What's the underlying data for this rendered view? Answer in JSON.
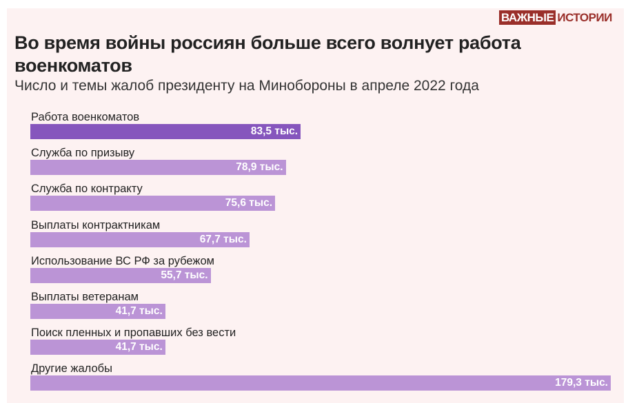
{
  "logo": {
    "part1": "ВАЖНЫЕ",
    "part2": "ИСТОРИИ"
  },
  "chart_data": {
    "type": "bar",
    "orientation": "horizontal",
    "title": "Во время войны россиян больше всего волнует работа военкоматов",
    "subtitle": "Число и темы жалоб президенту на Минобороны в апреле 2022 года",
    "categories": [
      "Работа военкоматов",
      "Служба по призыву",
      "Служба по контракту",
      "Выплаты контрактникам",
      "Использование ВС РФ за рубежом",
      "Выплаты ветеранам",
      "Поиск пленных и пропавших без вести",
      "Другие жалобы"
    ],
    "values": [
      83.5,
      78.9,
      75.6,
      67.7,
      55.7,
      41.7,
      41.7,
      179.3
    ],
    "data_labels": [
      "83,5 тыс.",
      "78,9 тыс.",
      "75,6 тыс.",
      "67,7 тыс.",
      "55,7 тыс.",
      "41,7 тыс.",
      "41,7 тыс.",
      "179,3 тыс."
    ],
    "unit": "тыс.",
    "colors": {
      "highlight": "#8656bd",
      "default": "#bb94d6"
    },
    "highlight_index": 0,
    "grid": false,
    "xlim": [
      0,
      179.3
    ]
  }
}
